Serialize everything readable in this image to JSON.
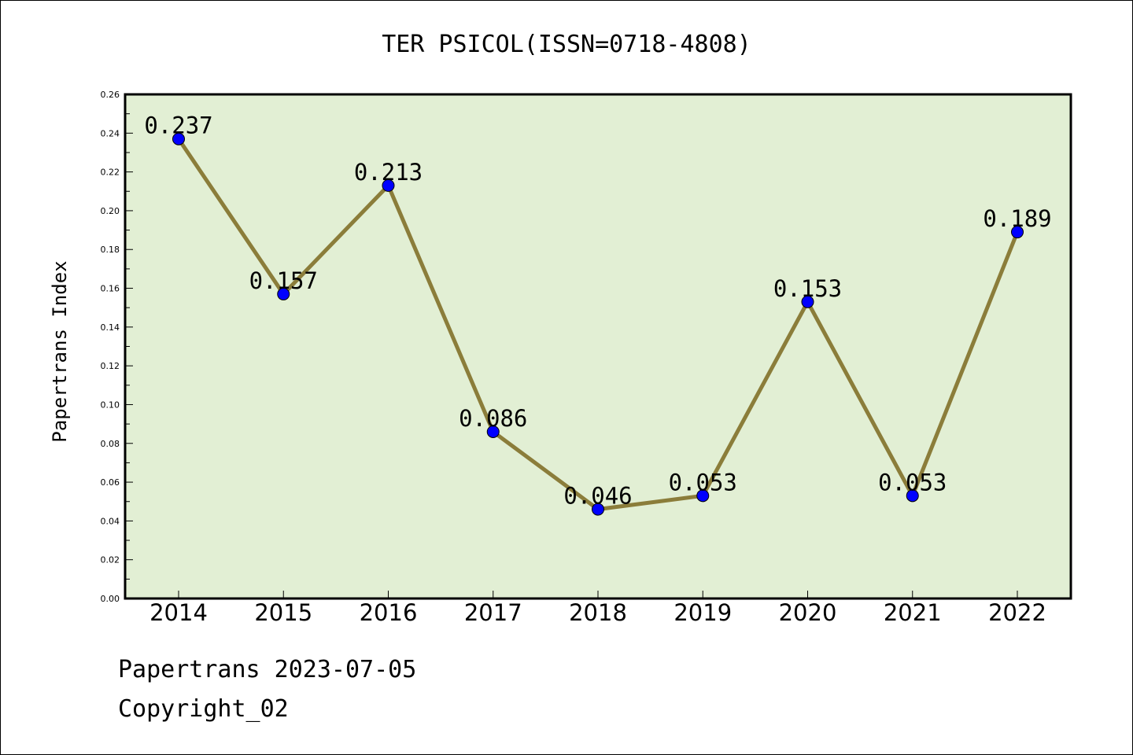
{
  "chart_data": {
    "type": "line",
    "title": "TER PSICOL(ISSN=0718-4808)",
    "xlabel": "",
    "ylabel": "Papertrans Index",
    "categories": [
      "2014",
      "2015",
      "2016",
      "2017",
      "2018",
      "2019",
      "2020",
      "2021",
      "2022"
    ],
    "values": [
      0.237,
      0.157,
      0.213,
      0.086,
      0.046,
      0.053,
      0.153,
      0.053,
      0.189
    ],
    "data_labels": [
      "0.237",
      "0.157",
      "0.213",
      "0.086",
      "0.046",
      "0.053",
      "0.153",
      "0.053",
      "0.189"
    ],
    "ylim": [
      0,
      0.26
    ],
    "y_ticks": [
      "0.00",
      "0.02",
      "0.04",
      "0.06",
      "0.08",
      "0.10",
      "0.12",
      "0.14",
      "0.16",
      "0.18",
      "0.20",
      "0.22",
      "0.24",
      "0.26"
    ],
    "grid": false,
    "legend": "none",
    "colors": {
      "plot_background": "#e2efd4",
      "line": "#8b7d3a",
      "marker": "#0000ff"
    }
  },
  "footer": {
    "date_line": "Papertrans 2023-07-05",
    "copyright": "Copyright_02"
  }
}
